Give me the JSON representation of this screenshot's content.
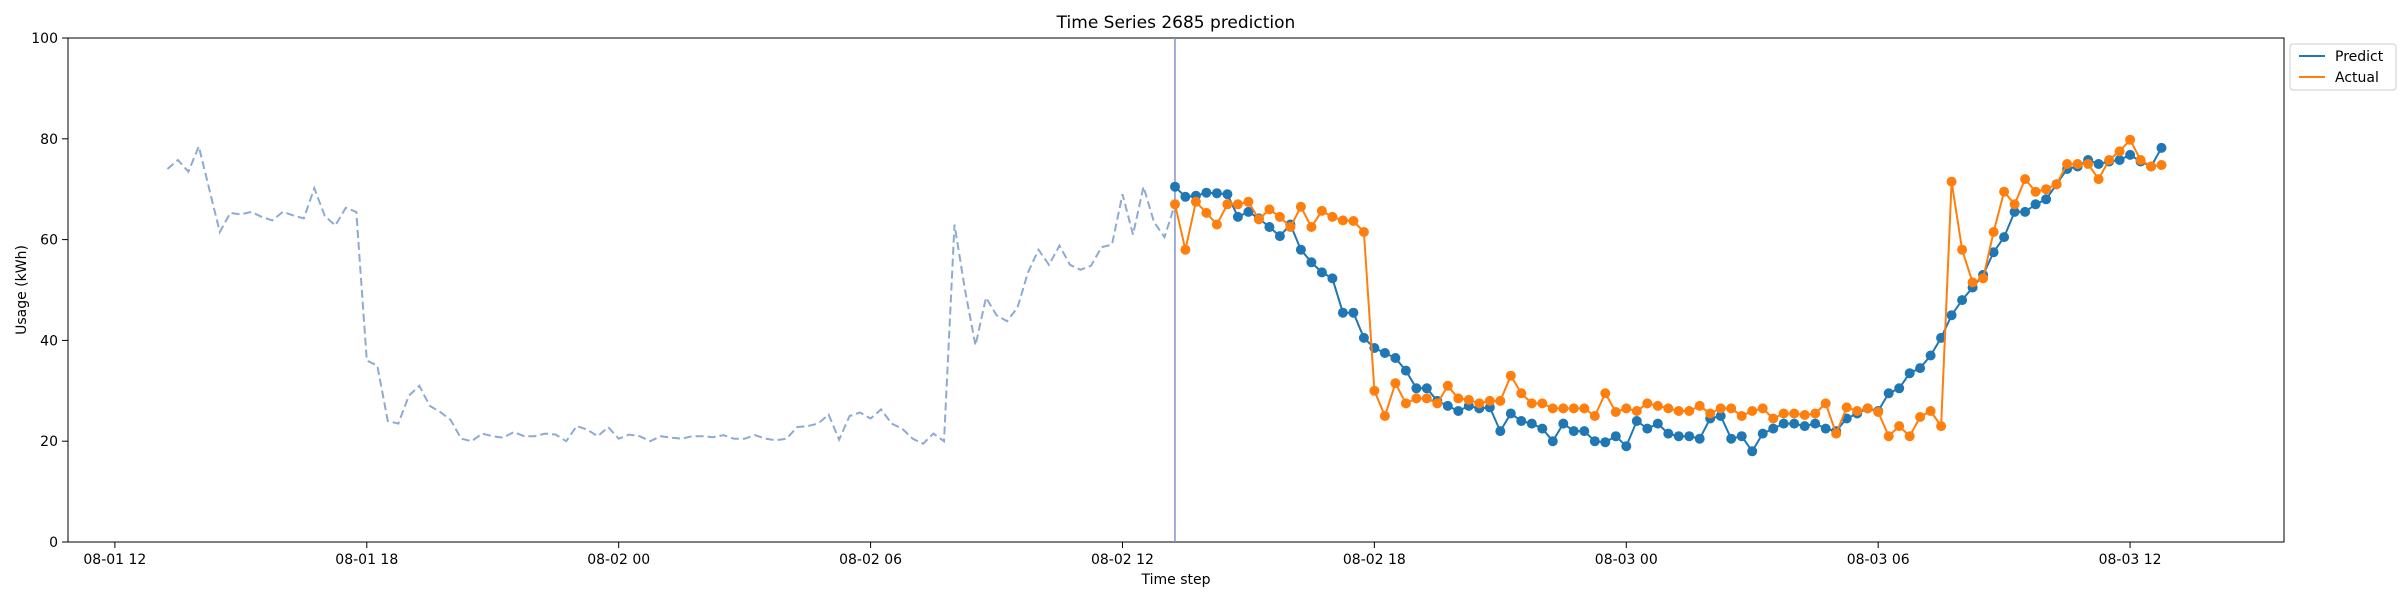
{
  "chart_data": {
    "type": "line",
    "title": "Time Series 2685 prediction",
    "xlabel": "Time step",
    "ylabel": "Usage (kWh)",
    "ylim": [
      0,
      100
    ],
    "xlim": [
      "2024-08-01T10:53",
      "2024-08-03T15:40"
    ],
    "x_ticks": [
      {
        "t": "2024-08-01T12:00",
        "label": "08-01 12"
      },
      {
        "t": "2024-08-01T18:00",
        "label": "08-01 18"
      },
      {
        "t": "2024-08-02T00:00",
        "label": "08-02 00"
      },
      {
        "t": "2024-08-02T06:00",
        "label": "08-02 06"
      },
      {
        "t": "2024-08-02T12:00",
        "label": "08-02 12"
      },
      {
        "t": "2024-08-02T18:00",
        "label": "08-02 18"
      },
      {
        "t": "2024-08-03T00:00",
        "label": "08-03 00"
      },
      {
        "t": "2024-08-03T06:00",
        "label": "08-03 06"
      },
      {
        "t": "2024-08-03T12:00",
        "label": "08-03 12"
      }
    ],
    "y_ticks": [
      0,
      20,
      40,
      60,
      80,
      100
    ],
    "grid": false,
    "legend_position": "upper-right-outside",
    "forecast_start": "2024-08-02T13:15",
    "history": {
      "start": "2024-08-01T13:15",
      "step_minutes": 15,
      "color": "#8eaad2",
      "style": "dashed",
      "values": [
        74.0,
        75.8,
        73.5,
        78.5,
        70.0,
        61.5,
        65.3,
        65.0,
        65.5,
        64.5,
        63.8,
        65.5,
        64.8,
        64.2,
        70.2,
        64.7,
        62.8,
        66.3,
        65.5,
        36.0,
        35.0,
        24.0,
        23.5,
        29.0,
        31.0,
        27.0,
        25.8,
        24.2,
        20.5,
        20.0,
        21.5,
        21.0,
        20.7,
        21.8,
        21.0,
        21.0,
        21.5,
        21.3,
        20.0,
        23.0,
        22.3,
        21.0,
        22.8,
        20.5,
        21.3,
        21.0,
        20.0,
        21.0,
        20.7,
        20.5,
        21.0,
        21.0,
        20.8,
        21.2,
        20.5,
        20.5,
        21.2,
        20.5,
        20.2,
        20.5,
        22.8,
        23.0,
        23.5,
        25.3,
        20.3,
        25.0,
        25.7,
        24.5,
        26.3,
        23.5,
        22.5,
        20.5,
        19.5,
        21.5,
        20.0,
        63.0,
        50.0,
        39.0,
        48.5,
        45.0,
        43.8,
        46.5,
        53.5,
        58.0,
        55.0,
        58.8,
        55.0,
        54.0,
        54.8,
        58.5,
        59.0,
        69.0,
        61.0,
        70.5,
        63.5,
        60.5,
        67.0
      ]
    },
    "series": [
      {
        "name": "Predict",
        "color": "#1f77b4",
        "start": "2024-08-02T13:15",
        "step_minutes": 15,
        "values": [
          70.5,
          68.5,
          68.7,
          69.3,
          69.2,
          69.0,
          64.5,
          65.5,
          64.2,
          62.5,
          60.7,
          63.0,
          58.0,
          55.5,
          53.5,
          52.3,
          45.5,
          45.5,
          40.5,
          38.5,
          37.5,
          36.5,
          34.0,
          30.5,
          30.5,
          28.0,
          27.0,
          26.0,
          27.0,
          26.5,
          26.7,
          22.0,
          25.5,
          24.0,
          23.5,
          22.5,
          20.0,
          23.5,
          22.0,
          22.0,
          20.0,
          19.8,
          21.0,
          19.0,
          24.0,
          22.5,
          23.5,
          21.5,
          21.0,
          21.0,
          20.5,
          24.5,
          25.0,
          20.5,
          21.0,
          18.0,
          21.5,
          22.5,
          23.5,
          23.5,
          23.0,
          23.5,
          22.5,
          22.0,
          24.5,
          25.5,
          26.5,
          26.0,
          29.5,
          30.5,
          33.5,
          34.5,
          37.0,
          40.5,
          45.0,
          48.0,
          50.5,
          53.0,
          57.5,
          60.5,
          65.5,
          65.5,
          67.0,
          68.0,
          71.0,
          74.0,
          74.5,
          75.8,
          75.0,
          75.5,
          75.8,
          76.8,
          75.5,
          74.5,
          78.2
        ]
      },
      {
        "name": "Actual",
        "color": "#ff7f0e",
        "start": "2024-08-02T13:15",
        "step_minutes": 15,
        "values": [
          67.0,
          58.0,
          67.5,
          65.3,
          63.0,
          67.0,
          67.0,
          67.5,
          64.0,
          66.0,
          64.5,
          62.5,
          66.5,
          62.5,
          65.7,
          64.5,
          63.8,
          63.7,
          61.5,
          30.0,
          25.0,
          31.5,
          27.5,
          28.5,
          28.5,
          27.5,
          31.0,
          28.5,
          28.2,
          27.5,
          28.0,
          28.0,
          33.0,
          29.5,
          27.5,
          27.5,
          26.5,
          26.5,
          26.5,
          26.5,
          25.0,
          29.5,
          25.8,
          26.5,
          26.0,
          27.5,
          27.0,
          26.5,
          26.0,
          26.0,
          27.0,
          25.5,
          26.5,
          26.5,
          25.0,
          26.0,
          26.5,
          24.5,
          25.5,
          25.5,
          25.2,
          25.5,
          27.5,
          21.5,
          26.7,
          26.0,
          26.5,
          25.8,
          21.0,
          23.0,
          21.0,
          24.8,
          26.0,
          23.0,
          71.5,
          58.0,
          51.5,
          52.3,
          61.5,
          69.5,
          67.0,
          72.0,
          69.5,
          70.0,
          71.0,
          75.0,
          75.0,
          75.0,
          72.0,
          75.8,
          77.5,
          79.8,
          75.8,
          74.5,
          74.8
        ]
      }
    ]
  }
}
